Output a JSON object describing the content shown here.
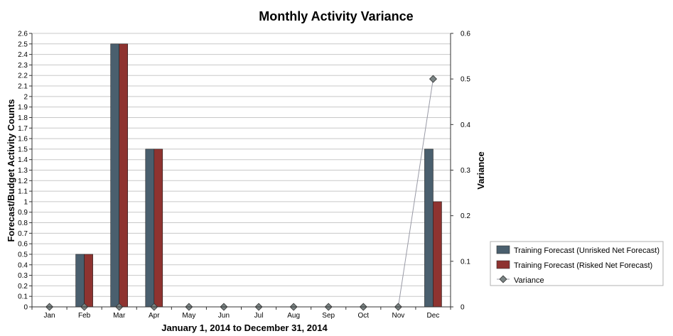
{
  "chart_data": {
    "type": "bar",
    "title": "Monthly Activity Variance",
    "xlabel": "January 1, 2014 to December 31, 2014",
    "ylabel": "Forecast/Budget Activity Counts",
    "y2label": "Variance",
    "categories": [
      "Jan",
      "Feb",
      "Mar",
      "Apr",
      "May",
      "Jun",
      "Jul",
      "Aug",
      "Sep",
      "Oct",
      "Nov",
      "Dec"
    ],
    "ylim": [
      0,
      2.6
    ],
    "yticks": [
      "0",
      "0.1",
      "0.2",
      "0.3",
      "0.4",
      "0.5",
      "0.6",
      "0.7",
      "0.8",
      "0.9",
      "1",
      "1.1",
      "1.2",
      "1.3",
      "1.4",
      "1.5",
      "1.6",
      "1.7",
      "1.8",
      "1.9",
      "2",
      "2.1",
      "2.2",
      "2.3",
      "2.4",
      "2.5",
      "2.6"
    ],
    "y2lim": [
      0,
      0.6
    ],
    "y2ticks": [
      "0",
      "0.1",
      "0.2",
      "0.3",
      "0.4",
      "0.5",
      "0.6"
    ],
    "grid": true,
    "legend_position": "right",
    "series": [
      {
        "name": "Training Forecast (Unrisked Net Forecast)",
        "kind": "bar",
        "axis": "left",
        "color": "#4a5f6e",
        "values": [
          0,
          0.5,
          2.5,
          1.5,
          0,
          0,
          0,
          0,
          0,
          0,
          0,
          1.5
        ]
      },
      {
        "name": "Training Forecast (Risked Net Forecast)",
        "kind": "bar",
        "axis": "left",
        "color": "#8e3330",
        "values": [
          0,
          0.5,
          2.5,
          1.5,
          0,
          0,
          0,
          0,
          0,
          0,
          0,
          1.0
        ]
      },
      {
        "name": "Variance",
        "kind": "line",
        "axis": "right",
        "color": "#999aa6",
        "marker_color": "#7b8585",
        "values": [
          0,
          0,
          0,
          0,
          0,
          0,
          0,
          0,
          0,
          0,
          0,
          0.5
        ]
      }
    ]
  }
}
